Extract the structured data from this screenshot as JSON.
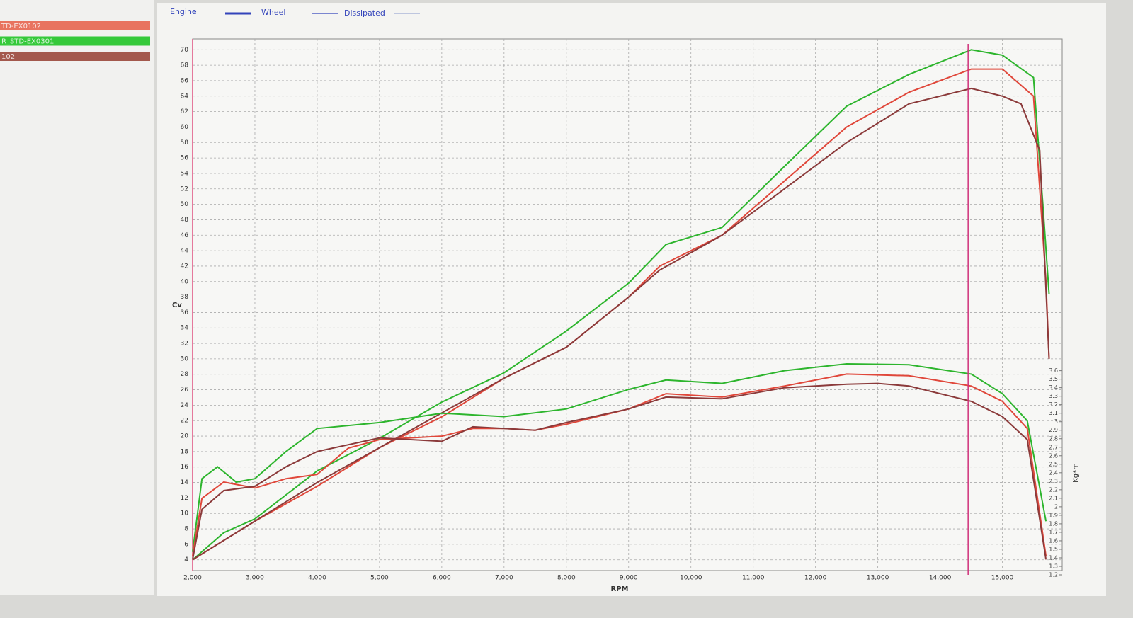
{
  "chart_data": {
    "type": "line",
    "runs": [
      {
        "name": "TD-EX0102",
        "color": "#e8735f"
      },
      {
        "name": "R_STD-EX0301",
        "color": "#35c93a"
      },
      {
        "name": "102",
        "color": "#a3584c"
      }
    ],
    "header_legend": [
      "Engine",
      "Wheel",
      "Dissipated"
    ],
    "xlabel": "RPM",
    "ylabel": "Cv",
    "y2label": "Kg*m",
    "xlim": [
      2000,
      15960
    ],
    "ylim": [
      2.6,
      71.4
    ],
    "y2lim": [
      1.25,
      7.5
    ],
    "xticks": [
      {
        "value": 2000,
        "label": "2,000"
      },
      {
        "value": 3000,
        "label": "3,000"
      },
      {
        "value": 4000,
        "label": "4,000"
      },
      {
        "value": 5000,
        "label": "5,000"
      },
      {
        "value": 6000,
        "label": "6,000"
      },
      {
        "value": 7000,
        "label": "7,000"
      },
      {
        "value": 8000,
        "label": "8,000"
      },
      {
        "value": 9000,
        "label": "9,000"
      },
      {
        "value": 10000,
        "label": "10,000"
      },
      {
        "value": 11000,
        "label": "11,000"
      },
      {
        "value": 12000,
        "label": "12,000"
      },
      {
        "value": 13000,
        "label": "13,000"
      },
      {
        "value": 14000,
        "label": "14,000"
      },
      {
        "value": 15000,
        "label": "15,000"
      }
    ],
    "yticks": [
      4,
      6,
      8,
      10,
      12,
      14,
      16,
      18,
      20,
      22,
      24,
      26,
      28,
      30,
      32,
      34,
      36,
      38,
      40,
      42,
      44,
      46,
      48,
      50,
      52,
      54,
      56,
      58,
      60,
      62,
      64,
      66,
      68,
      70
    ],
    "y2ticks": [
      1.2,
      1.3,
      1.4,
      1.5,
      1.6,
      1.7,
      1.8,
      1.9,
      2,
      2.1,
      2.2,
      2.3,
      2.4,
      2.5,
      2.6,
      2.7,
      2.8,
      2.9,
      3,
      3.1,
      3.2,
      3.3,
      3.4,
      3.5,
      3.6
    ],
    "grid": true,
    "cursor_x": 14450,
    "series": [
      {
        "color": "#2db52d",
        "x": [
          2000,
          2500,
          3000,
          4000,
          5000,
          6000,
          7000,
          8000,
          9000,
          9600,
          10500,
          11500,
          12500,
          13500,
          14500,
          15000,
          15500,
          15650,
          15750
        ],
        "values": [
          4,
          7.5,
          9.3,
          15.5,
          19.7,
          24.4,
          28.2,
          33.6,
          39.8,
          44.8,
          47,
          54.9,
          62.7,
          66.8,
          70,
          69.3,
          66.4,
          50,
          38.4
        ]
      },
      {
        "color": "#e0473a",
        "x": [
          2000,
          3000,
          4000,
          5000,
          6000,
          7000,
          8000,
          9000,
          9500,
          10500,
          11500,
          12500,
          13500,
          14500,
          15000,
          15500,
          15700,
          15750
        ],
        "values": [
          4,
          9,
          13.5,
          18.5,
          22.5,
          27.5,
          31.5,
          38,
          42,
          46,
          53,
          60,
          64.5,
          67.5,
          67.5,
          64,
          40,
          30
        ]
      },
      {
        "color": "#8b3a3a",
        "x": [
          2000,
          3000,
          4000,
          5000,
          6000,
          7000,
          8000,
          9000,
          9500,
          10500,
          11500,
          12500,
          13500,
          14500,
          15000,
          15300,
          15600,
          15750
        ],
        "values": [
          4,
          9,
          14,
          18.5,
          23,
          27.5,
          31.5,
          38,
          41.5,
          46,
          52,
          58,
          63,
          65,
          64,
          63,
          57,
          30
        ]
      },
      {
        "color": "#2db52d",
        "axis": "y2",
        "x": [
          2000,
          2150,
          2400,
          2700,
          3000,
          3500,
          4000,
          5000,
          6000,
          7000,
          8000,
          9000,
          9600,
          10500,
          11500,
          12500,
          13500,
          14500,
          15000,
          15400,
          15700
        ],
        "values": [
          1.47,
          2.33,
          2.47,
          2.29,
          2.33,
          2.65,
          2.92,
          2.99,
          3.1,
          3.06,
          3.15,
          3.38,
          3.49,
          3.45,
          3.6,
          3.68,
          3.67,
          3.56,
          3.33,
          3.01,
          1.83
        ]
      },
      {
        "color": "#e0473a",
        "axis": "y2",
        "x": [
          2000,
          2150,
          2500,
          3000,
          3500,
          4000,
          4500,
          5000,
          6000,
          6500,
          7000,
          7500,
          8000,
          9000,
          9600,
          10500,
          11500,
          12500,
          13500,
          14500,
          15000,
          15400,
          15700
        ],
        "values": [
          1.42,
          2.1,
          2.29,
          2.22,
          2.33,
          2.38,
          2.69,
          2.79,
          2.83,
          2.92,
          2.92,
          2.9,
          2.97,
          3.15,
          3.33,
          3.29,
          3.42,
          3.56,
          3.54,
          3.42,
          3.24,
          2.92,
          1.42
        ]
      },
      {
        "color": "#8b3a3a",
        "axis": "y2",
        "x": [
          2000,
          2150,
          2500,
          3000,
          3500,
          4000,
          5000,
          6000,
          6500,
          7000,
          7500,
          8000,
          9000,
          9600,
          10500,
          11500,
          12500,
          13000,
          13500,
          14500,
          15000,
          15400,
          15700
        ],
        "values": [
          1.38,
          1.97,
          2.19,
          2.24,
          2.47,
          2.65,
          2.81,
          2.77,
          2.94,
          2.92,
          2.9,
          2.99,
          3.15,
          3.29,
          3.27,
          3.4,
          3.44,
          3.45,
          3.42,
          3.24,
          3.06,
          2.79,
          1.38
        ]
      }
    ]
  }
}
